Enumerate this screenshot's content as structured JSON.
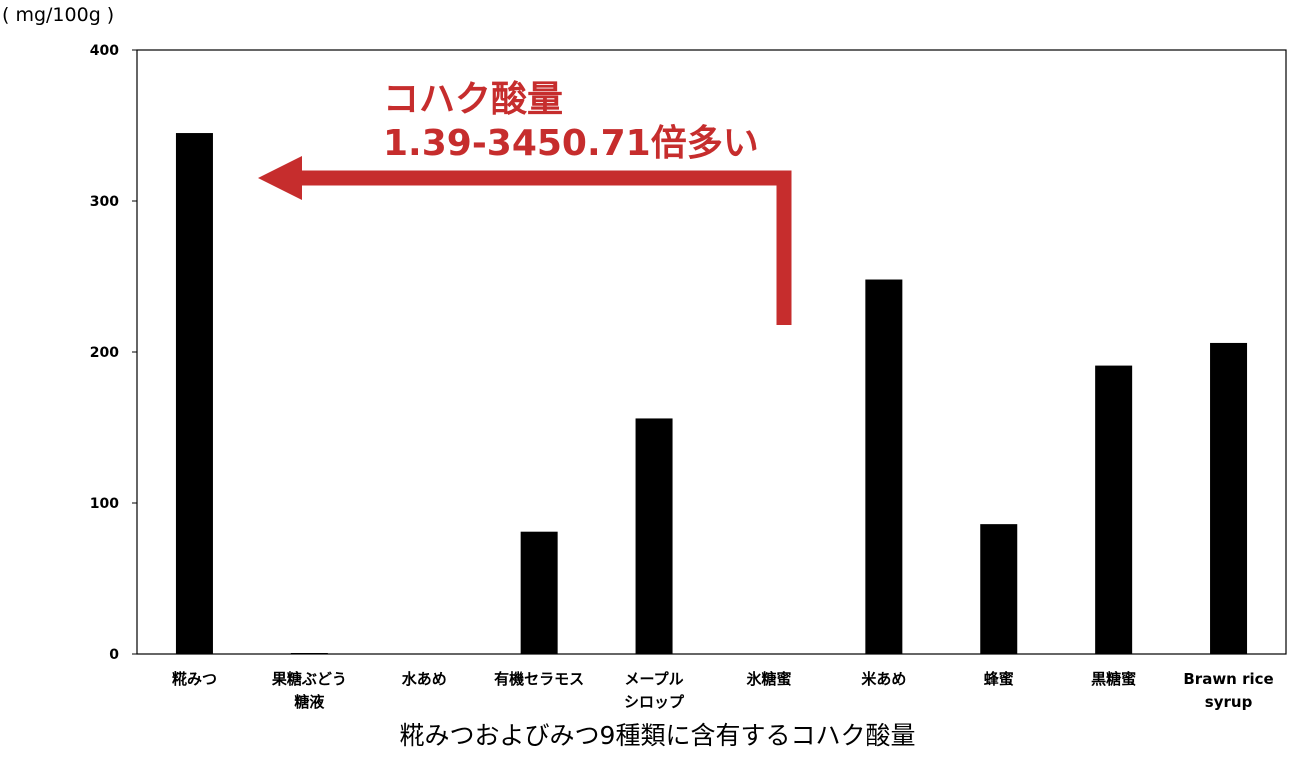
{
  "chart_data": {
    "type": "bar",
    "title": "",
    "caption": "糀みつおよびみつ9種類に含有するコハク酸量",
    "ylabel": "( mg/100g )",
    "xlabel": "",
    "ylim": [
      0,
      400
    ],
    "yticks": [
      0,
      100,
      200,
      300,
      400
    ],
    "grid": false,
    "categories": [
      [
        "糀みつ"
      ],
      [
        "果糖ぶどう",
        "糖液"
      ],
      [
        "水あめ"
      ],
      [
        "有機セラモス"
      ],
      [
        "メープル",
        "シロップ"
      ],
      [
        "氷糖蜜"
      ],
      [
        "米あめ"
      ],
      [
        "蜂蜜"
      ],
      [
        "黒糖蜜"
      ],
      [
        "Brawn rice",
        "syrup"
      ]
    ],
    "values": [
      345,
      0.1,
      0,
      81,
      156,
      0,
      248,
      86,
      191,
      206
    ],
    "bar_color": "#000000",
    "annotation": {
      "lines": [
        "コハク酸量",
        "1.39-3450.71倍多い"
      ],
      "color": "#c62d2d"
    }
  }
}
